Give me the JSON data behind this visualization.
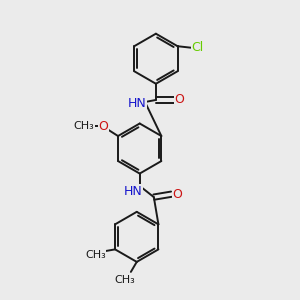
{
  "bg_color": "#ebebeb",
  "bond_color": "#1a1a1a",
  "bond_width": 1.4,
  "N_color": "#1414cc",
  "O_color": "#cc1414",
  "Cl_color": "#66cc00",
  "C_color": "#1a1a1a",
  "font_size": 9,
  "fig_size": [
    3.0,
    3.0
  ],
  "dpi": 100,
  "xlim": [
    0,
    10
  ],
  "ylim": [
    0,
    10
  ]
}
